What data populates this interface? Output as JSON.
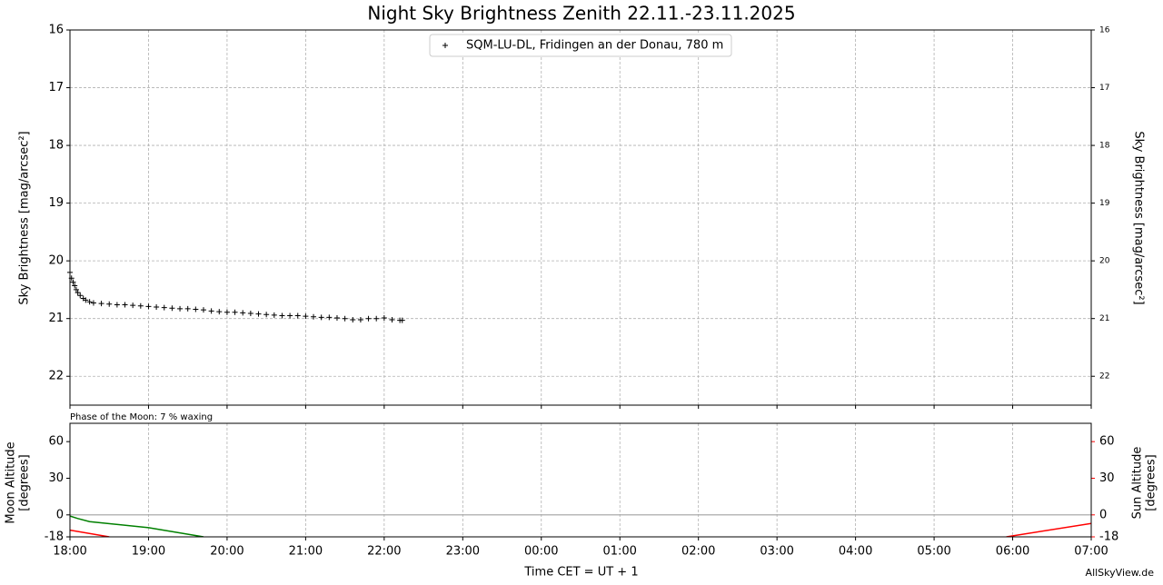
{
  "chart_data": [
    {
      "type": "scatter",
      "title": "Night Sky Brightness Zenith 22.11.-23.11.2025",
      "ylabel": "Sky Brightness [mag/arcsec²]",
      "legend": "top-center",
      "marker": "+",
      "grid": true,
      "xlim": [
        18,
        31
      ],
      "xticks": [
        18,
        19,
        20,
        21,
        22,
        23,
        24,
        25,
        26,
        27,
        28,
        29,
        30,
        31
      ],
      "ylim": [
        22.5,
        16
      ],
      "yticks": [
        16,
        17,
        18,
        19,
        20,
        21,
        22
      ],
      "y2lim": [
        22.5,
        16
      ],
      "y2ticks": [
        16,
        17,
        18,
        19,
        20,
        21,
        22
      ],
      "series": [
        {
          "name": "SQM-LU-DL, Fridingen an der Donau, 780 m",
          "color": "#000000",
          "x": [
            18.0,
            18.02,
            18.04,
            18.06,
            18.08,
            18.1,
            18.13,
            18.17,
            18.2,
            18.25,
            18.3,
            18.4,
            18.5,
            18.6,
            18.7,
            18.8,
            18.9,
            19.0,
            19.1,
            19.2,
            19.3,
            19.4,
            19.5,
            19.6,
            19.7,
            19.8,
            19.9,
            20.0,
            20.1,
            20.2,
            20.3,
            20.4,
            20.5,
            20.6,
            20.7,
            20.8,
            20.9,
            21.0,
            21.1,
            21.2,
            21.3,
            21.4,
            21.5,
            21.6,
            21.7,
            21.8,
            21.9,
            22.0,
            22.1,
            22.2,
            22.23
          ],
          "values": [
            20.2,
            20.3,
            20.37,
            20.43,
            20.5,
            20.55,
            20.6,
            20.65,
            20.68,
            20.71,
            20.73,
            20.74,
            20.75,
            20.76,
            20.76,
            20.77,
            20.78,
            20.79,
            20.8,
            20.81,
            20.82,
            20.83,
            20.83,
            20.84,
            20.85,
            20.87,
            20.88,
            20.89,
            20.89,
            20.9,
            20.91,
            20.92,
            20.93,
            20.94,
            20.95,
            20.95,
            20.95,
            20.96,
            20.97,
            20.98,
            20.98,
            20.99,
            21.0,
            21.02,
            21.02,
            21.0,
            21.0,
            20.99,
            21.02,
            21.03,
            21.03
          ]
        }
      ]
    },
    {
      "type": "line",
      "annotation": "Phase of the Moon: 7 % waxing",
      "xlabel": "Time CET = UT + 1",
      "credit": "AllSkyView.de",
      "ylabel": [
        "Moon Altitude",
        "[degrees]"
      ],
      "ylabel_color": "#008000",
      "y2label": [
        "Sun Altitude",
        "[degrees]"
      ],
      "y2label_color": "#ff0000",
      "grid": true,
      "hline": 0,
      "xlim": [
        18,
        31
      ],
      "xticks": [
        {
          "value": 18,
          "label": "18:00"
        },
        {
          "value": 19,
          "label": "19:00"
        },
        {
          "value": 20,
          "label": "20:00"
        },
        {
          "value": 21,
          "label": "21:00"
        },
        {
          "value": 22,
          "label": "22:00"
        },
        {
          "value": 23,
          "label": "23:00"
        },
        {
          "value": 24,
          "label": "00:00"
        },
        {
          "value": 25,
          "label": "01:00"
        },
        {
          "value": 26,
          "label": "02:00"
        },
        {
          "value": 27,
          "label": "03:00"
        },
        {
          "value": 28,
          "label": "04:00"
        },
        {
          "value": 29,
          "label": "05:00"
        },
        {
          "value": 30,
          "label": "06:00"
        },
        {
          "value": 31,
          "label": "07:00"
        }
      ],
      "ylim": [
        -18,
        75
      ],
      "yticks": [
        -18,
        0,
        30,
        60
      ],
      "y2lim": [
        -18,
        75
      ],
      "y2ticks": [
        -18,
        0,
        30,
        60
      ],
      "series": [
        {
          "name": "Moon",
          "color": "#008000",
          "x": [
            18,
            18.1,
            18.25,
            19,
            19.7
          ],
          "values": [
            -1,
            -3,
            -5.5,
            -10.5,
            -18
          ]
        },
        {
          "name": "Sun",
          "color": "#ff0000",
          "axis": "y2",
          "x": [
            18,
            18.5,
            24,
            29.92,
            31
          ],
          "values": [
            -12.5,
            -18,
            null,
            -18,
            -7
          ]
        }
      ]
    }
  ]
}
